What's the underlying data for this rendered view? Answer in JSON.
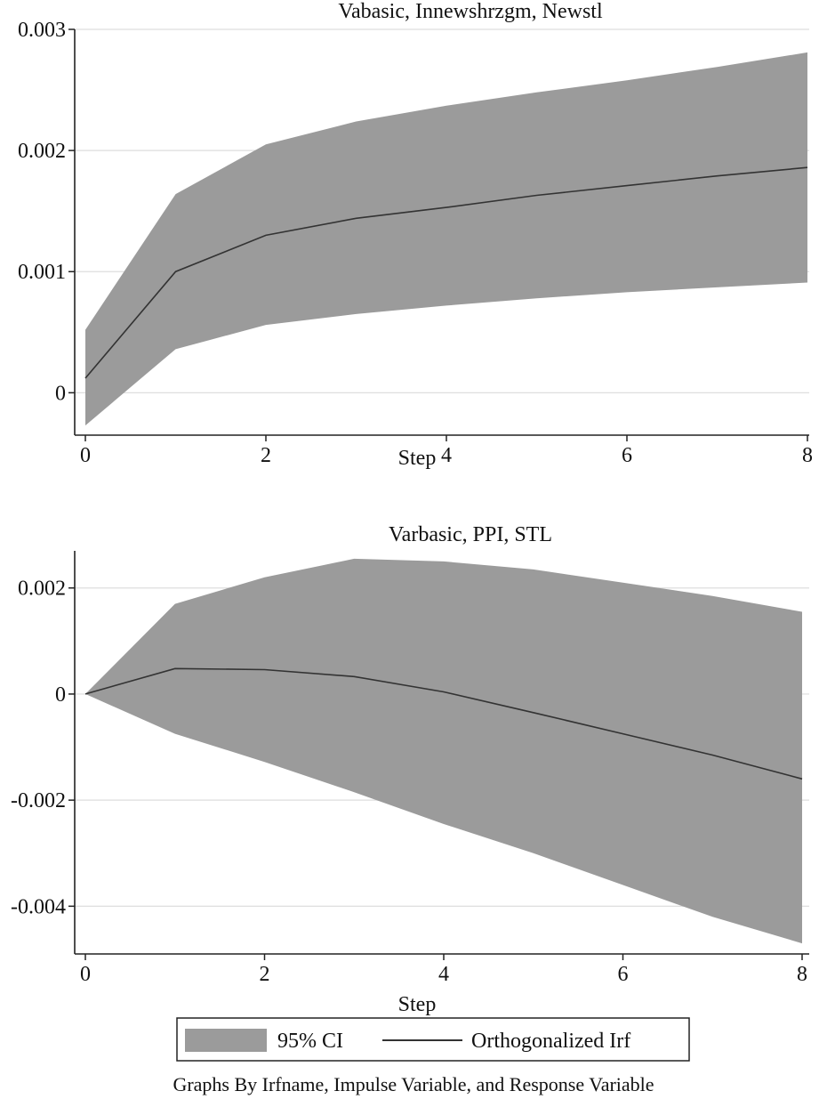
{
  "chart_data": [
    {
      "type": "area",
      "title": "Vabasic, Innewshrzgm, Newstl",
      "xlabel": "Step",
      "ylabel": "",
      "x": [
        0,
        1,
        2,
        3,
        4,
        5,
        6,
        7,
        8
      ],
      "xticks": [
        "0",
        "2",
        "4",
        "6",
        "8"
      ],
      "yticks": [
        "0",
        "0.001",
        "0.002",
        "0.003"
      ],
      "xlim": [
        0,
        8
      ],
      "ylim": [
        -0.00035,
        0.003
      ],
      "grid": "horizontal",
      "series": [
        {
          "name": "95% CI",
          "kind": "band",
          "lower": [
            -0.00027,
            0.00036,
            0.00056,
            0.00065,
            0.00072,
            0.00078,
            0.00083,
            0.00087,
            0.00091
          ],
          "upper": [
            0.00052,
            0.00164,
            0.00205,
            0.00224,
            0.00237,
            0.00248,
            0.00258,
            0.00269,
            0.00281
          ],
          "color": "#9b9b9b"
        },
        {
          "name": "Orthogonalized Irf",
          "kind": "line",
          "values": [
            0.00012,
            0.001,
            0.0013,
            0.00144,
            0.00153,
            0.00163,
            0.00171,
            0.00179,
            0.00186
          ],
          "color": "#333333"
        }
      ]
    },
    {
      "type": "area",
      "title": "Varbasic, PPI, STL",
      "xlabel": "Step",
      "ylabel": "",
      "x": [
        0,
        1,
        2,
        3,
        4,
        5,
        6,
        7,
        8
      ],
      "xticks": [
        "0",
        "2",
        "4",
        "6",
        "8"
      ],
      "yticks": [
        "-0.004",
        "-0.002",
        "0",
        "0.002"
      ],
      "xlim": [
        0,
        8
      ],
      "ylim": [
        -0.0049,
        0.0027
      ],
      "grid": "horizontal",
      "series": [
        {
          "name": "95% CI",
          "kind": "band",
          "lower": [
            0.0,
            -0.00075,
            -0.00128,
            -0.00185,
            -0.00245,
            -0.003,
            -0.0036,
            -0.0042,
            -0.0047
          ],
          "upper": [
            0.0,
            0.0017,
            0.0022,
            0.00255,
            0.0025,
            0.00235,
            0.0021,
            0.00185,
            0.00155
          ],
          "color": "#9b9b9b"
        },
        {
          "name": "Orthogonalized Irf",
          "kind": "line",
          "values": [
            0.0,
            0.00048,
            0.00046,
            0.00033,
            4e-05,
            -0.00035,
            -0.00075,
            -0.00115,
            -0.0016
          ],
          "color": "#333333"
        }
      ]
    }
  ],
  "legend": {
    "items": [
      {
        "label": "95% CI",
        "swatch": "band",
        "color": "#9b9b9b"
      },
      {
        "label": "Orthogonalized Irf",
        "swatch": "line",
        "color": "#333333"
      }
    ]
  },
  "footer": {
    "note": "Graphs By Irfname, Impulse Variable, and Response Variable"
  }
}
